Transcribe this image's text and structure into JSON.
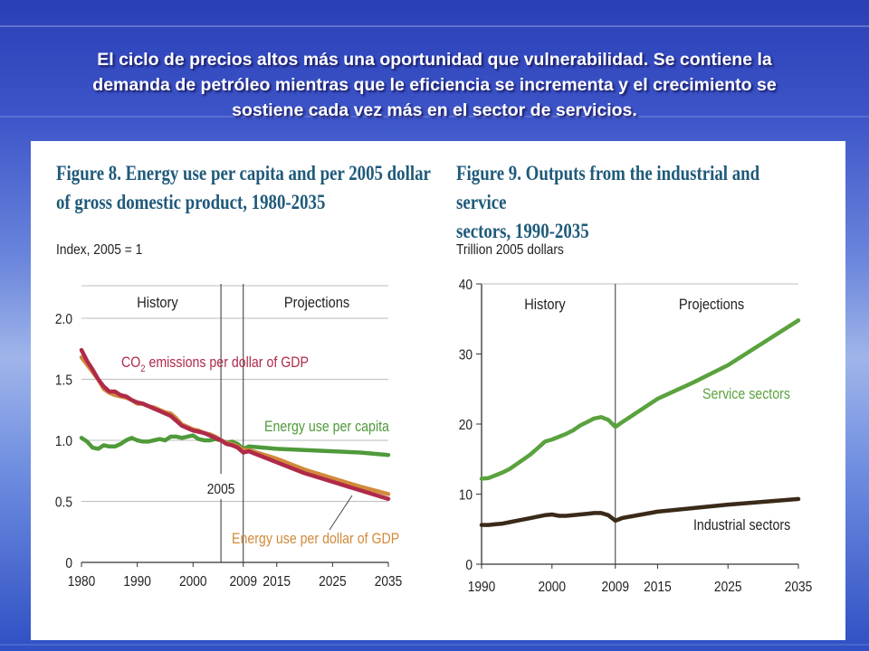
{
  "slide": {
    "title_lines": [
      "El ciclo de precios altos más una oportunidad que vulnerabilidad. Se contiene la",
      "demanda de petróleo mientras que le eficiencia se incrementa y el crecimiento se",
      "sostiene cada vez más en el sector de servicios."
    ]
  },
  "chart_data": [
    {
      "type": "line",
      "title_lines": [
        "Figure 8. Energy use per capita and per 2005 dollar",
        "of gross domestic product, 1980-2035"
      ],
      "ylabel": "Index, 2005 = 1",
      "xlabel": "",
      "xlim": [
        1980,
        2035
      ],
      "ylim": [
        0,
        2.0
      ],
      "yticks": [
        0,
        0.5,
        1.0,
        1.5,
        2.0
      ],
      "ytick_labels": [
        "0",
        "0.5",
        "1.0",
        "1.5",
        "2.0"
      ],
      "xticks": [
        1980,
        1990,
        2000,
        2009,
        2015,
        2025,
        2035
      ],
      "xtick_labels": [
        "1980",
        "1990",
        "2000",
        "2009",
        "2015",
        "2025",
        "2035"
      ],
      "grid": true,
      "regions": {
        "history": "History",
        "projections": "Projections"
      },
      "divider_x": 2009,
      "marker": {
        "x": 2005,
        "label": "2005"
      },
      "series": [
        {
          "name": "Energy use per capita",
          "color": "#4f9a3a",
          "x": [
            1980,
            1981,
            1982,
            1983,
            1984,
            1985,
            1986,
            1987,
            1988,
            1989,
            1990,
            1991,
            1992,
            1993,
            1994,
            1995,
            1996,
            1997,
            1998,
            1999,
            2000,
            2001,
            2002,
            2003,
            2004,
            2005,
            2006,
            2007,
            2008,
            2009,
            2010,
            2015,
            2020,
            2025,
            2030,
            2035
          ],
          "y": [
            1.02,
            0.99,
            0.94,
            0.93,
            0.96,
            0.95,
            0.95,
            0.97,
            1.0,
            1.02,
            1.0,
            0.99,
            0.99,
            1.0,
            1.01,
            1.0,
            1.03,
            1.03,
            1.02,
            1.03,
            1.04,
            1.01,
            1.0,
            1.0,
            1.01,
            1.0,
            0.98,
            0.99,
            0.97,
            0.93,
            0.95,
            0.93,
            0.92,
            0.91,
            0.9,
            0.88
          ]
        },
        {
          "name": "CO2 emissions per dollar of GDP",
          "label_main": "CO",
          "label_sub": "2",
          "label_rest": " emissions per dollar of GDP",
          "color": "#b02a4a",
          "x": [
            1980,
            1981,
            1982,
            1983,
            1984,
            1985,
            1986,
            1987,
            1988,
            1989,
            1990,
            1991,
            1992,
            1993,
            1994,
            1995,
            1996,
            1997,
            1998,
            1999,
            2000,
            2001,
            2002,
            2003,
            2004,
            2005,
            2006,
            2007,
            2008,
            2009,
            2010,
            2015,
            2020,
            2025,
            2030,
            2035
          ],
          "y": [
            1.74,
            1.65,
            1.58,
            1.5,
            1.44,
            1.4,
            1.4,
            1.37,
            1.36,
            1.33,
            1.31,
            1.3,
            1.28,
            1.26,
            1.24,
            1.22,
            1.2,
            1.16,
            1.12,
            1.1,
            1.08,
            1.07,
            1.06,
            1.04,
            1.02,
            1.0,
            0.97,
            0.96,
            0.94,
            0.9,
            0.91,
            0.82,
            0.73,
            0.66,
            0.59,
            0.52
          ]
        },
        {
          "name": "Energy use per dollar of GDP",
          "color": "#d28a3a",
          "x": [
            1980,
            1981,
            1982,
            1983,
            1984,
            1985,
            1986,
            1987,
            1988,
            1989,
            1990,
            1991,
            1992,
            1993,
            1994,
            1995,
            1996,
            1997,
            1998,
            1999,
            2000,
            2001,
            2002,
            2003,
            2004,
            2005,
            2006,
            2007,
            2008,
            2009,
            2010,
            2015,
            2020,
            2025,
            2030,
            2035
          ],
          "y": [
            1.68,
            1.62,
            1.56,
            1.5,
            1.42,
            1.39,
            1.37,
            1.36,
            1.35,
            1.33,
            1.3,
            1.3,
            1.28,
            1.27,
            1.25,
            1.23,
            1.22,
            1.18,
            1.13,
            1.11,
            1.09,
            1.08,
            1.06,
            1.05,
            1.03,
            1.0,
            0.98,
            0.97,
            0.95,
            0.92,
            0.92,
            0.85,
            0.76,
            0.69,
            0.62,
            0.56
          ]
        }
      ]
    },
    {
      "type": "line",
      "title_lines": [
        "Figure 9. Outputs from the industrial and service",
        "sectors, 1990-2035"
      ],
      "ylabel": "Trillion 2005 dollars",
      "xlabel": "",
      "xlim": [
        1990,
        2035
      ],
      "ylim": [
        0,
        40
      ],
      "yticks": [
        0,
        10,
        20,
        30,
        40
      ],
      "ytick_labels": [
        "0",
        "10",
        "20",
        "30",
        "40"
      ],
      "xticks": [
        1990,
        2000,
        2009,
        2015,
        2025,
        2035
      ],
      "xtick_labels": [
        "1990",
        "2000",
        "2009",
        "2015",
        "2025",
        "2035"
      ],
      "grid": false,
      "regions": {
        "history": "History",
        "projections": "Projections"
      },
      "divider_x": 2009,
      "series": [
        {
          "name": "Service sectors",
          "color": "#5aa23e",
          "x": [
            1990,
            1991,
            1992,
            1993,
            1994,
            1995,
            1996,
            1997,
            1998,
            1999,
            2000,
            2001,
            2002,
            2003,
            2004,
            2005,
            2006,
            2007,
            2008,
            2009,
            2010,
            2015,
            2020,
            2025,
            2030,
            2035
          ],
          "y": [
            12.2,
            12.3,
            12.7,
            13.1,
            13.6,
            14.3,
            15.0,
            15.7,
            16.6,
            17.5,
            17.8,
            18.2,
            18.6,
            19.1,
            19.8,
            20.3,
            20.8,
            21.0,
            20.6,
            19.6,
            20.3,
            23.6,
            25.9,
            28.4,
            31.6,
            34.8
          ]
        },
        {
          "name": "Industrial sectors",
          "color": "#3a2a18",
          "x": [
            1990,
            1991,
            1992,
            1993,
            1994,
            1995,
            1996,
            1997,
            1998,
            1999,
            2000,
            2001,
            2002,
            2003,
            2004,
            2005,
            2006,
            2007,
            2008,
            2009,
            2010,
            2015,
            2020,
            2025,
            2030,
            2035
          ],
          "y": [
            5.6,
            5.6,
            5.7,
            5.8,
            6.0,
            6.2,
            6.4,
            6.6,
            6.8,
            7.0,
            7.1,
            6.9,
            6.9,
            7.0,
            7.1,
            7.2,
            7.3,
            7.3,
            7.0,
            6.2,
            6.6,
            7.5,
            8.0,
            8.5,
            8.9,
            9.3
          ]
        }
      ]
    }
  ]
}
